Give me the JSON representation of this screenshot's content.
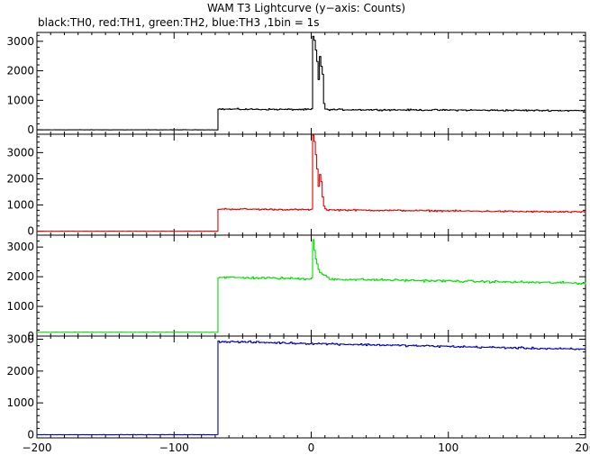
{
  "chart_data": {
    "type": "line",
    "title": "WAM T3 Lightcurve (y−axis: Counts)",
    "subtitle": "black:TH0, red:TH1, green:TH2, blue:TH3 ,1bin = 1s",
    "xlim": [
      -200,
      200
    ],
    "x_ticks": [
      -200,
      -100,
      0,
      100,
      200
    ],
    "x_tick_labels": [
      "−200",
      "−100",
      "0",
      "100",
      "200"
    ],
    "bin_seconds": 1,
    "trigger_start": -68,
    "grid": false,
    "panels": [
      {
        "name": "TH0",
        "color": "#000000",
        "ylim": [
          -150,
          3300
        ],
        "y_ticks": [
          0,
          1000,
          2000,
          3000
        ],
        "y_tick_labels": [
          "0",
          "1000",
          "2000",
          "3000"
        ],
        "baseline": 0,
        "level_start": 700,
        "level_end": 650,
        "noise": 35,
        "spike": [
          [
            0,
            700
          ],
          [
            0.5,
            2600
          ],
          [
            1,
            3150
          ],
          [
            2,
            3000
          ],
          [
            3,
            2700
          ],
          [
            4,
            2300
          ],
          [
            5,
            1700
          ],
          [
            6,
            2500
          ],
          [
            7,
            2150
          ],
          [
            8,
            1900
          ],
          [
            9,
            900
          ],
          [
            10,
            700
          ]
        ]
      },
      {
        "name": "TH1",
        "color": "#e00000",
        "ylim": [
          -150,
          3700
        ],
        "y_ticks": [
          0,
          1000,
          2000,
          3000
        ],
        "y_tick_labels": [
          "0",
          "1000",
          "2000",
          "3000"
        ],
        "baseline": 0,
        "level_start": 850,
        "level_end": 730,
        "noise": 40,
        "spike": [
          [
            0,
            850
          ],
          [
            0.5,
            3000
          ],
          [
            1,
            3650
          ],
          [
            2,
            3400
          ],
          [
            3,
            2900
          ],
          [
            4,
            2400
          ],
          [
            5,
            1700
          ],
          [
            6,
            2200
          ],
          [
            7,
            1900
          ],
          [
            8,
            1300
          ],
          [
            9,
            950
          ],
          [
            10,
            850
          ]
        ]
      },
      {
        "name": "TH2",
        "color": "#00e000",
        "ylim": [
          0,
          3400
        ],
        "y_ticks": [
          0,
          1000,
          2000,
          3000
        ],
        "y_tick_labels": [
          "0",
          "1000",
          "2000",
          "3000"
        ],
        "baseline": 130,
        "level_start": 1980,
        "level_end": 1780,
        "noise": 55,
        "spike": [
          [
            0,
            1980
          ],
          [
            0.5,
            2800
          ],
          [
            1,
            3250
          ],
          [
            2,
            2900
          ],
          [
            3,
            2600
          ],
          [
            4,
            2400
          ],
          [
            5,
            2250
          ],
          [
            7,
            2100
          ],
          [
            10,
            2000
          ],
          [
            12,
            1980
          ]
        ]
      },
      {
        "name": "TH3",
        "color": "#0000c0",
        "ylim": [
          -100,
          3100
        ],
        "y_ticks": [
          0,
          1000,
          2000,
          3000
        ],
        "y_tick_labels": [
          "0",
          "1000",
          "2000",
          "3000"
        ],
        "baseline": 0,
        "level_start": 2930,
        "level_end": 2680,
        "noise": 45,
        "spike": []
      }
    ]
  }
}
